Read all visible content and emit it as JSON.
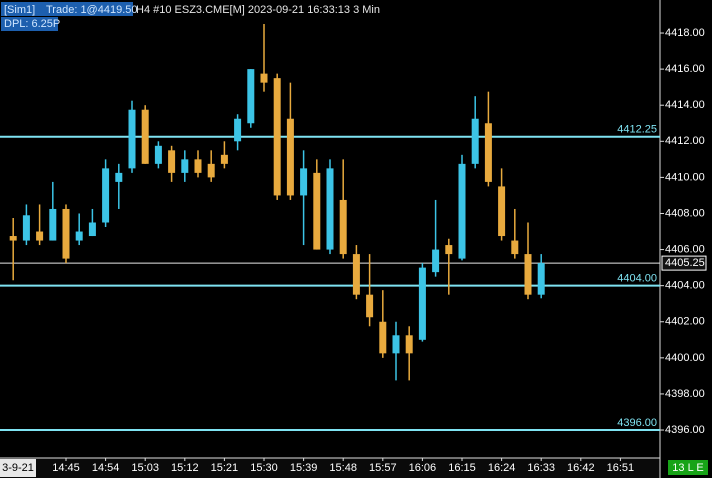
{
  "header": {
    "account": "[Sim1]",
    "trade": "Trade: 1@4419.50",
    "instrument": "H4 #10 ESZ3.CME[M] 2023-09-21 16:33:13 3 Min",
    "dpl": "DPL: 6.25P"
  },
  "status": "13 L E",
  "chart_data": {
    "type": "candlestick",
    "up_color": "#3cc4e6",
    "down_color": "#e8aa3e",
    "x": [
      "14:33",
      "14:36",
      "14:39",
      "14:42",
      "14:45",
      "14:48",
      "14:51",
      "14:54",
      "14:57",
      "15:00",
      "15:03",
      "15:06",
      "15:09",
      "15:12",
      "15:15",
      "15:18",
      "15:21",
      "15:24",
      "15:27",
      "15:30",
      "15:33",
      "15:36",
      "15:39",
      "15:42",
      "15:45",
      "15:48",
      "15:51",
      "15:54",
      "15:57",
      "16:00",
      "16:03",
      "16:06",
      "16:09",
      "16:12",
      "16:15",
      "16:18",
      "16:21",
      "16:24",
      "16:27",
      "16:30",
      "16:33"
    ],
    "open": [
      4406.75,
      4406.5,
      4407,
      4406.5,
      4408.25,
      4406.5,
      4406.75,
      4407.5,
      4409.75,
      4410.5,
      4413.75,
      4410.75,
      4411.5,
      4410.25,
      4411,
      4410.75,
      4411.25,
      4412,
      4413,
      4415.75,
      4415.5,
      4413.25,
      4409,
      4410.25,
      4406,
      4408.75,
      4405.75,
      4403.5,
      4402,
      4400.25,
      4401.25,
      4401,
      4404.75,
      4406.25,
      4405.5,
      4410.75,
      4413,
      4409.5,
      4406.5,
      4405.75,
      4403.5
    ],
    "high": [
      4407.75,
      4408.5,
      4408.5,
      4409.75,
      4408.5,
      4408,
      4408.25,
      4411,
      4410.75,
      4414.25,
      4414,
      4412,
      4411.75,
      4411.5,
      4411.5,
      4411.5,
      4412,
      4413.5,
      4416,
      4418.5,
      4415.75,
      4415.25,
      4411.5,
      4411,
      4411,
      4411,
      4406.25,
      4405.75,
      4403.75,
      4402,
      4401.75,
      4405.25,
      4408.75,
      4406.6,
      4411.25,
      4414.5,
      4414.75,
      4410.5,
      4408.25,
      4407.5,
      4405.75
    ],
    "low": [
      4404.3,
      4406.25,
      4406.25,
      4406.5,
      4405.25,
      4406.25,
      4406.75,
      4407.25,
      4408.25,
      4410.25,
      4410.75,
      4410.5,
      4409.75,
      4409.75,
      4410,
      4409.75,
      4410.5,
      4411.5,
      4412.75,
      4414.75,
      4408.75,
      4408.75,
      4406.25,
      4406,
      4405.75,
      4405.5,
      4403.25,
      4401.75,
      4400,
      4398.75,
      4398.75,
      4400.9,
      4404.5,
      4403.5,
      4405.4,
      4410.5,
      4409.5,
      4406.5,
      4405.5,
      4403.25,
      4403.3
    ],
    "close": [
      4406.5,
      4407.9,
      4406.5,
      4408.25,
      4405.5,
      4407,
      4407.5,
      4410.5,
      4410.25,
      4413.75,
      4410.75,
      4411.75,
      4410.25,
      4411,
      4410.25,
      4410,
      4410.75,
      4413.25,
      4416,
      4415.25,
      4409,
      4409,
      4410.5,
      4406,
      4410.5,
      4405.75,
      4403.5,
      4402.25,
      4400.25,
      4401.25,
      4400.25,
      4405,
      4406,
      4405.75,
      4410.75,
      4413.25,
      4409.75,
      4406.75,
      4405.75,
      4403.5,
      4405.25
    ],
    "xlim": [
      "14:30",
      "17:00"
    ],
    "xticks": [
      "14:45",
      "14:54",
      "15:03",
      "15:12",
      "15:21",
      "15:30",
      "15:39",
      "15:48",
      "15:57",
      "16:06",
      "16:15",
      "16:24",
      "16:33",
      "16:42",
      "16:51"
    ],
    "date_label": "3-9-21",
    "ylim": [
      4394.45,
      4419.83
    ],
    "yticks": [
      {
        "value": 4396,
        "label": "4396.00"
      },
      {
        "value": 4398,
        "label": "4398.00"
      },
      {
        "value": 4400,
        "label": "4400.00"
      },
      {
        "value": 4402,
        "label": "4402.00"
      },
      {
        "value": 4404,
        "label": "4404.00"
      },
      {
        "value": 4406,
        "label": "4406.00"
      },
      {
        "value": 4408,
        "label": "4408.00"
      },
      {
        "value": 4410,
        "label": "4410.00"
      },
      {
        "value": 4412,
        "label": "4412.00"
      },
      {
        "value": 4414,
        "label": "4414.00"
      },
      {
        "value": 4416,
        "label": "4416.00"
      },
      {
        "value": 4418,
        "label": "4418.00"
      }
    ],
    "levels": [
      4412.25,
      {
        "value": 4404,
        "label": "4404.00"
      },
      {
        "value": 4396,
        "label": "4396.00"
      }
    ],
    "level_color": "#7fe3f2",
    "last_price": 4405.25
  }
}
